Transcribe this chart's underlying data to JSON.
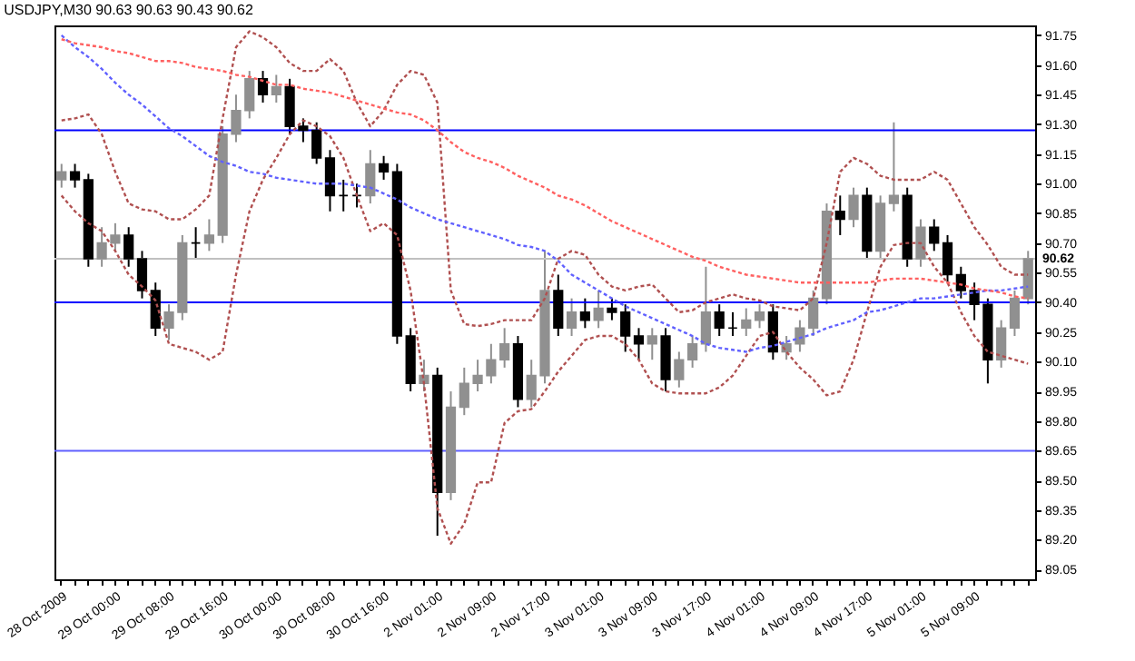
{
  "chart_data": {
    "type": "candlestick",
    "title": "USDJPY,M30 90.63 90.63 90.43 90.62",
    "categories": [
      "28 Oct 2009",
      null,
      null,
      null,
      "29 Oct 00:00",
      null,
      null,
      null,
      "29 Oct 08:00",
      null,
      null,
      null,
      "29 Oct 16:00",
      null,
      null,
      null,
      "30 Oct 00:00",
      null,
      null,
      null,
      "30 Oct 08:00",
      null,
      null,
      null,
      "30 Oct 16:00",
      null,
      null,
      null,
      "2 Nov 01:00",
      null,
      null,
      null,
      "2 Nov 09:00",
      null,
      null,
      null,
      "2 Nov 17:00",
      null,
      null,
      null,
      "3 Nov 01:00",
      null,
      null,
      null,
      "3 Nov 09:00",
      null,
      null,
      null,
      "3 Nov 17:00",
      null,
      null,
      null,
      "4 Nov 01:00",
      null,
      null,
      null,
      "4 Nov 09:00",
      null,
      null,
      null,
      "4 Nov 17:00",
      null,
      null,
      null,
      "5 Nov 01:00",
      null,
      null,
      null,
      "5 Nov 09:00",
      null,
      null,
      null,
      null
    ],
    "ohlc": [
      [
        91.02,
        91.1,
        90.98,
        91.06
      ],
      [
        91.06,
        91.1,
        90.98,
        91.02
      ],
      [
        91.02,
        91.05,
        90.58,
        90.62
      ],
      [
        90.62,
        90.78,
        90.58,
        90.7
      ],
      [
        90.7,
        90.8,
        90.66,
        90.74
      ],
      [
        90.74,
        90.78,
        90.58,
        90.62
      ],
      [
        90.62,
        90.66,
        90.42,
        90.46
      ],
      [
        90.46,
        90.5,
        90.23,
        90.27
      ],
      [
        90.27,
        90.39,
        90.21,
        90.35
      ],
      [
        90.35,
        90.74,
        90.31,
        90.7
      ],
      [
        90.7,
        90.78,
        90.62,
        90.7
      ],
      [
        90.7,
        90.82,
        90.66,
        90.74
      ],
      [
        90.74,
        91.29,
        90.7,
        91.25
      ],
      [
        91.25,
        91.45,
        91.21,
        91.37
      ],
      [
        91.37,
        91.57,
        91.33,
        91.53
      ],
      [
        91.53,
        91.57,
        91.41,
        91.45
      ],
      [
        91.45,
        91.55,
        91.41,
        91.49
      ],
      [
        91.49,
        91.53,
        91.25,
        91.29
      ],
      [
        91.29,
        91.33,
        91.21,
        91.27
      ],
      [
        91.27,
        91.31,
        91.1,
        91.13
      ],
      [
        91.13,
        91.17,
        90.86,
        90.94
      ],
      [
        90.94,
        91.02,
        90.86,
        90.94
      ],
      [
        90.94,
        91.0,
        90.88,
        90.94
      ],
      [
        90.94,
        91.17,
        90.9,
        91.1
      ],
      [
        91.1,
        91.14,
        91.02,
        91.06
      ],
      [
        91.06,
        91.1,
        90.19,
        90.23
      ],
      [
        90.23,
        90.27,
        89.95,
        89.99
      ],
      [
        89.99,
        90.11,
        89.95,
        90.03
      ],
      [
        90.03,
        90.07,
        89.22,
        89.44
      ],
      [
        89.44,
        89.95,
        89.4,
        89.87
      ],
      [
        89.87,
        90.07,
        89.83,
        89.99
      ],
      [
        89.99,
        90.11,
        89.95,
        90.03
      ],
      [
        90.03,
        90.19,
        89.99,
        90.11
      ],
      [
        90.11,
        90.27,
        90.07,
        90.19
      ],
      [
        90.19,
        90.23,
        89.87,
        89.91
      ],
      [
        89.91,
        90.11,
        89.87,
        90.03
      ],
      [
        90.03,
        90.66,
        89.99,
        90.46
      ],
      [
        90.46,
        90.54,
        90.23,
        90.27
      ],
      [
        90.27,
        90.42,
        90.23,
        90.35
      ],
      [
        90.35,
        90.42,
        90.27,
        90.31
      ],
      [
        90.31,
        90.46,
        90.27,
        90.37
      ],
      [
        90.37,
        90.42,
        90.31,
        90.35
      ],
      [
        90.35,
        90.39,
        90.15,
        90.23
      ],
      [
        90.23,
        90.27,
        90.11,
        90.19
      ],
      [
        90.19,
        90.27,
        90.11,
        90.23
      ],
      [
        90.23,
        90.27,
        89.95,
        90.01
      ],
      [
        90.01,
        90.15,
        89.97,
        90.11
      ],
      [
        90.11,
        90.23,
        90.07,
        90.19
      ],
      [
        90.19,
        90.58,
        90.15,
        90.35
      ],
      [
        90.35,
        90.39,
        90.23,
        90.27
      ],
      [
        90.27,
        90.35,
        90.23,
        90.27
      ],
      [
        90.27,
        90.37,
        90.23,
        90.31
      ],
      [
        90.31,
        90.39,
        90.27,
        90.35
      ],
      [
        90.35,
        90.39,
        90.11,
        90.15
      ],
      [
        90.15,
        90.23,
        90.11,
        90.19
      ],
      [
        90.19,
        90.31,
        90.15,
        90.27
      ],
      [
        90.27,
        90.46,
        90.23,
        90.42
      ],
      [
        90.42,
        90.9,
        90.39,
        90.86
      ],
      [
        90.86,
        90.94,
        90.74,
        90.82
      ],
      [
        90.82,
        90.98,
        90.78,
        90.94
      ],
      [
        90.94,
        90.98,
        90.62,
        90.66
      ],
      [
        90.66,
        90.94,
        90.62,
        90.9
      ],
      [
        90.9,
        91.31,
        90.86,
        90.94
      ],
      [
        90.94,
        90.98,
        90.58,
        90.62
      ],
      [
        90.62,
        90.82,
        90.58,
        90.78
      ],
      [
        90.78,
        90.82,
        90.66,
        90.7
      ],
      [
        90.7,
        90.74,
        90.5,
        90.54
      ],
      [
        90.54,
        90.58,
        90.42,
        90.46
      ],
      [
        90.46,
        90.5,
        90.31,
        90.39
      ],
      [
        90.39,
        90.42,
        89.99,
        90.11
      ],
      [
        90.11,
        90.31,
        90.07,
        90.27
      ],
      [
        90.27,
        90.46,
        90.23,
        90.42
      ],
      [
        90.42,
        90.66,
        90.39,
        90.62
      ]
    ],
    "colors": [
      "#909090",
      "#000000",
      "#000000",
      "#909090",
      "#909090",
      "#000000",
      "#000000",
      "#000000",
      "#909090",
      "#909090",
      "#000000",
      "#909090",
      "#909090",
      "#909090",
      "#909090",
      "#000000",
      "#909090",
      "#000000",
      "#000000",
      "#000000",
      "#000000",
      "#000000",
      "#000000",
      "#909090",
      "#000000",
      "#000000",
      "#000000",
      "#909090",
      "#000000",
      "#909090",
      "#909090",
      "#909090",
      "#909090",
      "#909090",
      "#000000",
      "#909090",
      "#909090",
      "#000000",
      "#909090",
      "#000000",
      "#909090",
      "#000000",
      "#000000",
      "#000000",
      "#909090",
      "#000000",
      "#909090",
      "#909090",
      "#909090",
      "#000000",
      "#000000",
      "#909090",
      "#909090",
      "#000000",
      "#909090",
      "#909090",
      "#909090",
      "#909090",
      "#000000",
      "#909090",
      "#000000",
      "#909090",
      "#909090",
      "#000000",
      "#909090",
      "#000000",
      "#000000",
      "#000000",
      "#000000",
      "#000000",
      "#909090",
      "#909090",
      "#909090"
    ],
    "series": [
      {
        "type": "line",
        "color": "#b05050",
        "values": [
          91.32,
          91.33,
          91.35,
          91.25,
          91.06,
          90.9,
          90.87,
          90.86,
          90.82,
          90.82,
          90.87,
          90.94,
          91.33,
          91.69,
          91.77,
          91.74,
          91.69,
          91.61,
          91.57,
          91.57,
          91.63,
          91.57,
          91.41,
          91.29,
          91.37,
          91.5,
          91.57,
          91.55,
          91.41,
          90.46,
          90.29,
          90.28,
          90.29,
          90.31,
          90.31,
          90.31,
          90.42,
          90.62,
          90.66,
          90.64,
          90.54,
          90.48,
          90.46,
          90.48,
          90.49,
          90.42,
          90.35,
          90.36,
          90.4,
          90.42,
          90.44,
          90.42,
          90.41,
          90.38,
          90.37,
          90.36,
          90.42,
          90.7,
          91.06,
          91.13,
          91.1,
          91.04,
          91.02,
          91.02,
          91.02,
          91.06,
          91.02,
          90.9,
          90.78,
          90.69,
          90.58,
          90.54,
          90.54
        ]
      },
      {
        "type": "line",
        "color": "#b05050",
        "values": [
          90.94,
          90.86,
          90.8,
          90.76,
          90.66,
          90.54,
          90.48,
          90.41,
          90.19,
          90.17,
          90.15,
          90.11,
          90.15,
          90.54,
          90.86,
          91.02,
          91.13,
          91.25,
          91.32,
          91.29,
          91.24,
          91.13,
          90.94,
          90.76,
          90.8,
          90.74,
          90.46,
          89.99,
          89.36,
          89.18,
          89.28,
          89.49,
          89.49,
          89.79,
          89.85,
          89.86,
          89.95,
          90.05,
          90.13,
          90.21,
          90.23,
          90.23,
          90.19,
          90.11,
          89.99,
          89.95,
          89.94,
          89.94,
          89.94,
          89.97,
          90.03,
          90.13,
          90.23,
          90.25,
          90.15,
          90.07,
          90.01,
          89.93,
          89.95,
          90.11,
          90.35,
          90.58,
          90.69,
          90.7,
          90.7,
          90.58,
          90.5,
          90.35,
          90.23,
          90.15,
          90.13,
          90.11,
          90.09
        ]
      },
      {
        "type": "line",
        "color": "#6060ff",
        "values": [
          91.75,
          91.69,
          91.64,
          91.58,
          91.51,
          91.45,
          91.4,
          91.34,
          91.28,
          91.24,
          91.19,
          91.14,
          91.11,
          91.09,
          91.06,
          91.05,
          91.03,
          91.02,
          91.01,
          91.0,
          91.0,
          91.0,
          90.99,
          90.98,
          90.95,
          90.92,
          90.88,
          90.85,
          90.82,
          90.8,
          90.78,
          90.76,
          90.74,
          90.72,
          90.69,
          90.68,
          90.66,
          90.61,
          90.54,
          90.5,
          90.46,
          90.42,
          90.38,
          90.35,
          90.32,
          90.29,
          90.26,
          90.23,
          90.19,
          90.17,
          90.16,
          90.15,
          90.17,
          90.18,
          90.2,
          90.22,
          90.24,
          90.27,
          90.29,
          90.31,
          90.35,
          90.36,
          90.38,
          90.4,
          90.42,
          90.42,
          90.43,
          90.44,
          90.45,
          90.46,
          90.46,
          90.47,
          90.48
        ]
      },
      {
        "type": "line",
        "color": "#ff6060",
        "values": [
          91.73,
          91.71,
          91.7,
          91.69,
          91.67,
          91.66,
          91.64,
          91.62,
          91.62,
          91.61,
          91.59,
          91.58,
          91.57,
          91.55,
          91.54,
          91.52,
          91.5,
          91.5,
          91.48,
          91.47,
          91.46,
          91.44,
          91.42,
          91.4,
          91.38,
          91.36,
          91.35,
          91.32,
          91.27,
          91.21,
          91.16,
          91.13,
          91.11,
          91.08,
          91.04,
          91.01,
          90.98,
          90.94,
          90.92,
          90.89,
          90.85,
          90.81,
          90.78,
          90.75,
          90.72,
          90.69,
          90.66,
          90.63,
          90.61,
          90.58,
          90.56,
          90.54,
          90.53,
          90.52,
          90.51,
          90.5,
          90.5,
          90.5,
          90.5,
          90.5,
          90.5,
          90.51,
          90.52,
          90.52,
          90.52,
          90.51,
          90.5,
          90.49,
          90.47,
          90.46,
          90.45,
          90.43,
          90.42
        ]
      }
    ],
    "line_style": "dotted",
    "ylim": [
      89.0,
      91.8
    ],
    "yticks": [
      89.05,
      {
        "value": 89.2,
        "label": "89.20"
      },
      89.35,
      {
        "value": 89.5,
        "label": "89.50"
      },
      89.65,
      {
        "value": 89.8,
        "label": "89.80"
      },
      89.95,
      {
        "value": 90.1,
        "label": "90.10"
      },
      90.25,
      {
        "value": 90.4,
        "label": "90.40"
      },
      90.55,
      {
        "value": 90.7,
        "label": "90.70"
      },
      90.85,
      {
        "value": 91,
        "label": "91.00"
      },
      91.15,
      {
        "value": 91.3,
        "label": "91.30"
      },
      91.45,
      {
        "value": 91.6,
        "label": "91.60"
      },
      91.75
    ],
    "ref_lines": [
      {
        "axis": "y",
        "value": 91.27,
        "color": "#0000ff"
      },
      {
        "axis": "y",
        "value": 90.4,
        "color": "#0000ff"
      },
      {
        "axis": "y",
        "value": 89.65,
        "color": "#6060ff"
      },
      {
        "axis": "y",
        "value": 90.62,
        "color": "#c0c0c0",
        "label": "90.62"
      }
    ],
    "marker": "none"
  }
}
